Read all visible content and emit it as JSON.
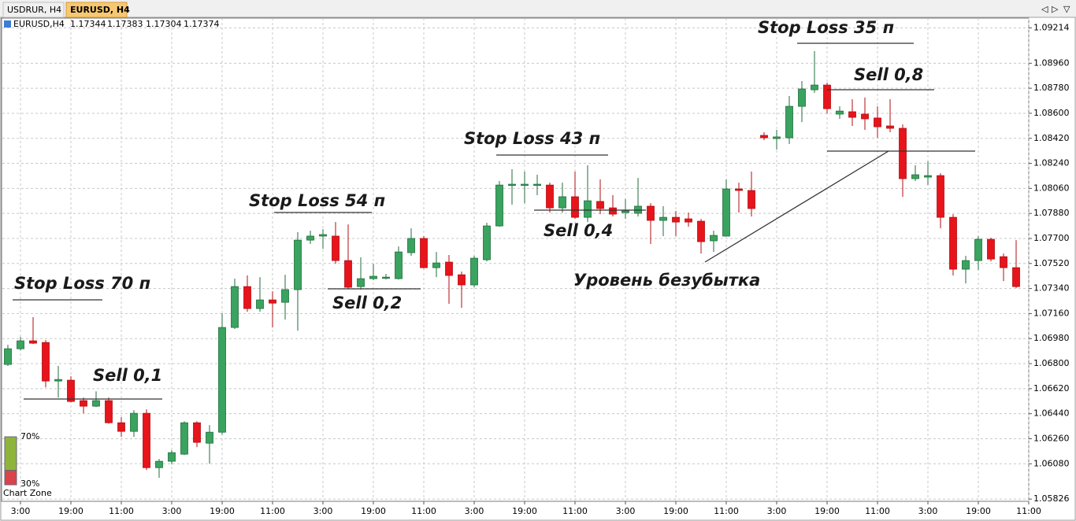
{
  "tabs": [
    "USDRUR, H4",
    "EURUSD, H4"
  ],
  "active_tab": 1,
  "chart_data": {
    "type": "candlestick",
    "symbol": "EURUSD,H4",
    "last_ohlc": [
      1.17344,
      1.17383,
      1.17304,
      1.17374
    ],
    "up_color": "#3aa35f",
    "down_color": "#e8141b",
    "grid": true,
    "ylim": [
      1.0581,
      1.0929
    ],
    "yticks": [
      1.09214,
      {
        "value": 1.0896,
        "label": "1.08960"
      },
      {
        "value": 1.0878,
        "label": "1.08780"
      },
      {
        "value": 1.086,
        "label": "1.08600"
      },
      {
        "value": 1.0842,
        "label": "1.08420"
      },
      {
        "value": 1.0824,
        "label": "1.08240"
      },
      {
        "value": 1.0806,
        "label": "1.08060"
      },
      {
        "value": 1.0788,
        "label": "1.07880"
      },
      {
        "value": 1.077,
        "label": "1.07700"
      },
      {
        "value": 1.0752,
        "label": "1.07520"
      },
      {
        "value": 1.0734,
        "label": "1.07340"
      },
      {
        "value": 1.0716,
        "label": "1.07160"
      },
      {
        "value": 1.0698,
        "label": "1.06980"
      },
      {
        "value": 1.068,
        "label": "1.06800"
      },
      {
        "value": 1.0662,
        "label": "1.06620"
      },
      {
        "value": 1.0644,
        "label": "1.06440"
      },
      {
        "value": 1.0626,
        "label": "1.06260"
      },
      {
        "value": 1.0608,
        "label": "1.06080"
      },
      1.05826
    ],
    "categories": [
      null,
      "3:00",
      null,
      null,
      null,
      "19:00",
      null,
      null,
      null,
      "11:00",
      null,
      null,
      null,
      "3:00",
      null,
      null,
      null,
      "19:00",
      null,
      null,
      null,
      "11:00",
      null,
      null,
      null,
      "3:00",
      null,
      null,
      null,
      "19:00",
      null,
      null,
      null,
      "11:00",
      null,
      null,
      null,
      "3:00",
      null,
      null,
      null,
      "19:00",
      null,
      null,
      null,
      "11:00",
      null,
      null,
      null,
      "3:00",
      null,
      null,
      null,
      "19:00",
      null,
      null,
      null,
      "11:00",
      null,
      null,
      null,
      "3:00",
      null,
      null,
      null,
      "19:00",
      null,
      null,
      null,
      "11:00",
      null,
      null,
      null,
      "3:00",
      null,
      null,
      null,
      "19:00",
      null,
      null,
      null,
      "11:00"
    ],
    "open": [
      1.06794,
      1.06907,
      1.06964,
      1.06952,
      1.06675,
      1.06681,
      1.06534,
      1.06494,
      1.06534,
      1.06375,
      1.06313,
      1.06443,
      1.06052,
      1.06098,
      1.06149,
      1.06375,
      1.06228,
      1.06307,
      1.0706,
      1.07354,
      1.07196,
      1.07258,
      1.07241,
      1.07332,
      1.07688,
      1.07717,
      1.07717,
      1.07541,
      1.07354,
      1.07411,
      1.07417,
      1.07411,
      1.07598,
      1.077,
      1.0749,
      1.0753,
      1.07439,
      1.07366,
      1.07547,
      1.0779,
      1.08081,
      1.08081,
      1.08081,
      1.08084,
      1.0792,
      1.08,
      1.07852,
      1.07966,
      1.0792,
      1.07886,
      1.07881,
      1.07932,
      1.0783,
      1.07852,
      1.07841,
      1.07824,
      1.07683,
      1.07717,
      1.08056,
      1.08045,
      1.08441,
      1.08418,
      1.08424,
      1.0865,
      1.08769,
      1.08803,
      1.08594,
      1.08611,
      1.08594,
      1.08566,
      1.08509,
      1.08492,
      1.0813,
      1.08141,
      1.08152,
      1.07852,
      1.07479,
      1.07541,
      1.07694,
      1.07569,
      1.0749,
      null
    ],
    "high": [
      1.06935,
      1.06992,
      1.07134,
      1.06969,
      1.06783,
      1.06709,
      1.06556,
      1.06601,
      1.06556,
      1.06415,
      1.06466,
      1.06471,
      1.06115,
      1.06177,
      1.06386,
      1.06386,
      1.06358,
      1.07162,
      1.07411,
      1.07434,
      1.07422,
      1.0732,
      1.07439,
      1.07745,
      1.07756,
      1.07767,
      1.07818,
      1.07801,
      1.07564,
      1.07518,
      1.07445,
      1.07643,
      1.07773,
      1.07717,
      1.07603,
      1.07581,
      1.07462,
      1.07575,
      1.07813,
      1.08113,
      1.08198,
      1.08181,
      1.08158,
      1.08101,
      1.08101,
      1.08181,
      1.08226,
      1.08124,
      1.08011,
      1.07983,
      1.08135,
      1.07954,
      1.07932,
      1.07898,
      1.07886,
      1.07841,
      1.07756,
      1.08124,
      1.08101,
      1.08181,
      1.08464,
      1.08481,
      1.08724,
      1.08832,
      1.09047,
      1.0882,
      1.0865,
      1.08701,
      1.08713,
      1.0865,
      1.08701,
      1.0852,
      1.08226,
      1.08254,
      1.08169,
      1.07875,
      1.07575,
      1.07717,
      1.07705,
      1.07592,
      1.07688,
      null
    ],
    "low": [
      1.06783,
      1.06896,
      1.06941,
      1.0663,
      1.06556,
      1.06522,
      1.06443,
      1.06488,
      1.06369,
      1.06273,
      1.06273,
      1.06035,
      1.05979,
      1.06075,
      1.06143,
      1.062,
      1.06081,
      1.0629,
      1.07049,
      1.07173,
      1.07173,
      1.0706,
      1.07117,
      1.07037,
      1.0766,
      1.07626,
      1.07518,
      1.07337,
      1.07332,
      1.074,
      1.07405,
      1.07405,
      1.07575,
      1.07484,
      1.07422,
      1.0723,
      1.07201,
      1.07349,
      1.07535,
      1.07784,
      1.07943,
      1.07954,
      1.08011,
      1.07886,
      1.07886,
      1.07841,
      1.07818,
      1.07875,
      1.07858,
      1.07841,
      1.07858,
      1.0766,
      1.07717,
      1.07717,
      1.07784,
      1.07592,
      1.07603,
      1.07717,
      1.07886,
      1.07858,
      1.08407,
      1.08339,
      1.08379,
      1.08537,
      1.08747,
      1.08599,
      1.0856,
      1.08509,
      1.08481,
      1.08424,
      1.08464,
      1.08,
      1.08113,
      1.08084,
      1.07773,
      1.07434,
      1.07377,
      1.07473,
      1.07535,
      1.07394,
      1.07343,
      null
    ],
    "close": [
      1.06907,
      1.06964,
      1.06947,
      1.06675,
      1.06686,
      1.06528,
      1.06494,
      1.06534,
      1.06375,
      1.06313,
      1.06443,
      1.06052,
      1.06098,
      1.0616,
      1.06375,
      1.06234,
      1.06307,
      1.0706,
      1.07354,
      1.07196,
      1.07258,
      1.07235,
      1.07332,
      1.07688,
      1.07717,
      1.07728,
      1.07541,
      1.07349,
      1.07411,
      1.07428,
      1.07422,
      1.07603,
      1.077,
      1.0749,
      1.07524,
      1.07434,
      1.07366,
      1.07558,
      1.0779,
      1.08084,
      1.0809,
      1.0809,
      1.0809,
      1.0792,
      1.08,
      1.07852,
      1.07971,
      1.07915,
      1.07875,
      1.07898,
      1.07932,
      1.0783,
      1.07852,
      1.07818,
      1.07818,
      1.07677,
      1.07722,
      1.08056,
      1.08045,
      1.07915,
      1.08424,
      1.0843,
      1.0865,
      1.08775,
      1.08803,
      1.08633,
      1.08616,
      1.08571,
      1.0856,
      1.08503,
      1.08492,
      1.0813,
      1.08158,
      1.08152,
      1.07852,
      1.07479,
      1.07541,
      1.07694,
      1.07552,
      1.0749,
      1.07354,
      null
    ],
    "annotations": [
      "Stop Loss 70 п",
      "Sell 0,1",
      "Stop Loss 54 п",
      "Sell 0,2",
      "Stop Loss 43 п",
      "Sell 0,4",
      "Stop Loss 35 п",
      "Sell 0,8",
      "Уровень безубытка"
    ],
    "zone": {
      "label": "Chart Zone",
      "upper": {
        "value": 70,
        "label": "70%"
      },
      "lower": {
        "value": 30,
        "label": "30%"
      }
    }
  }
}
